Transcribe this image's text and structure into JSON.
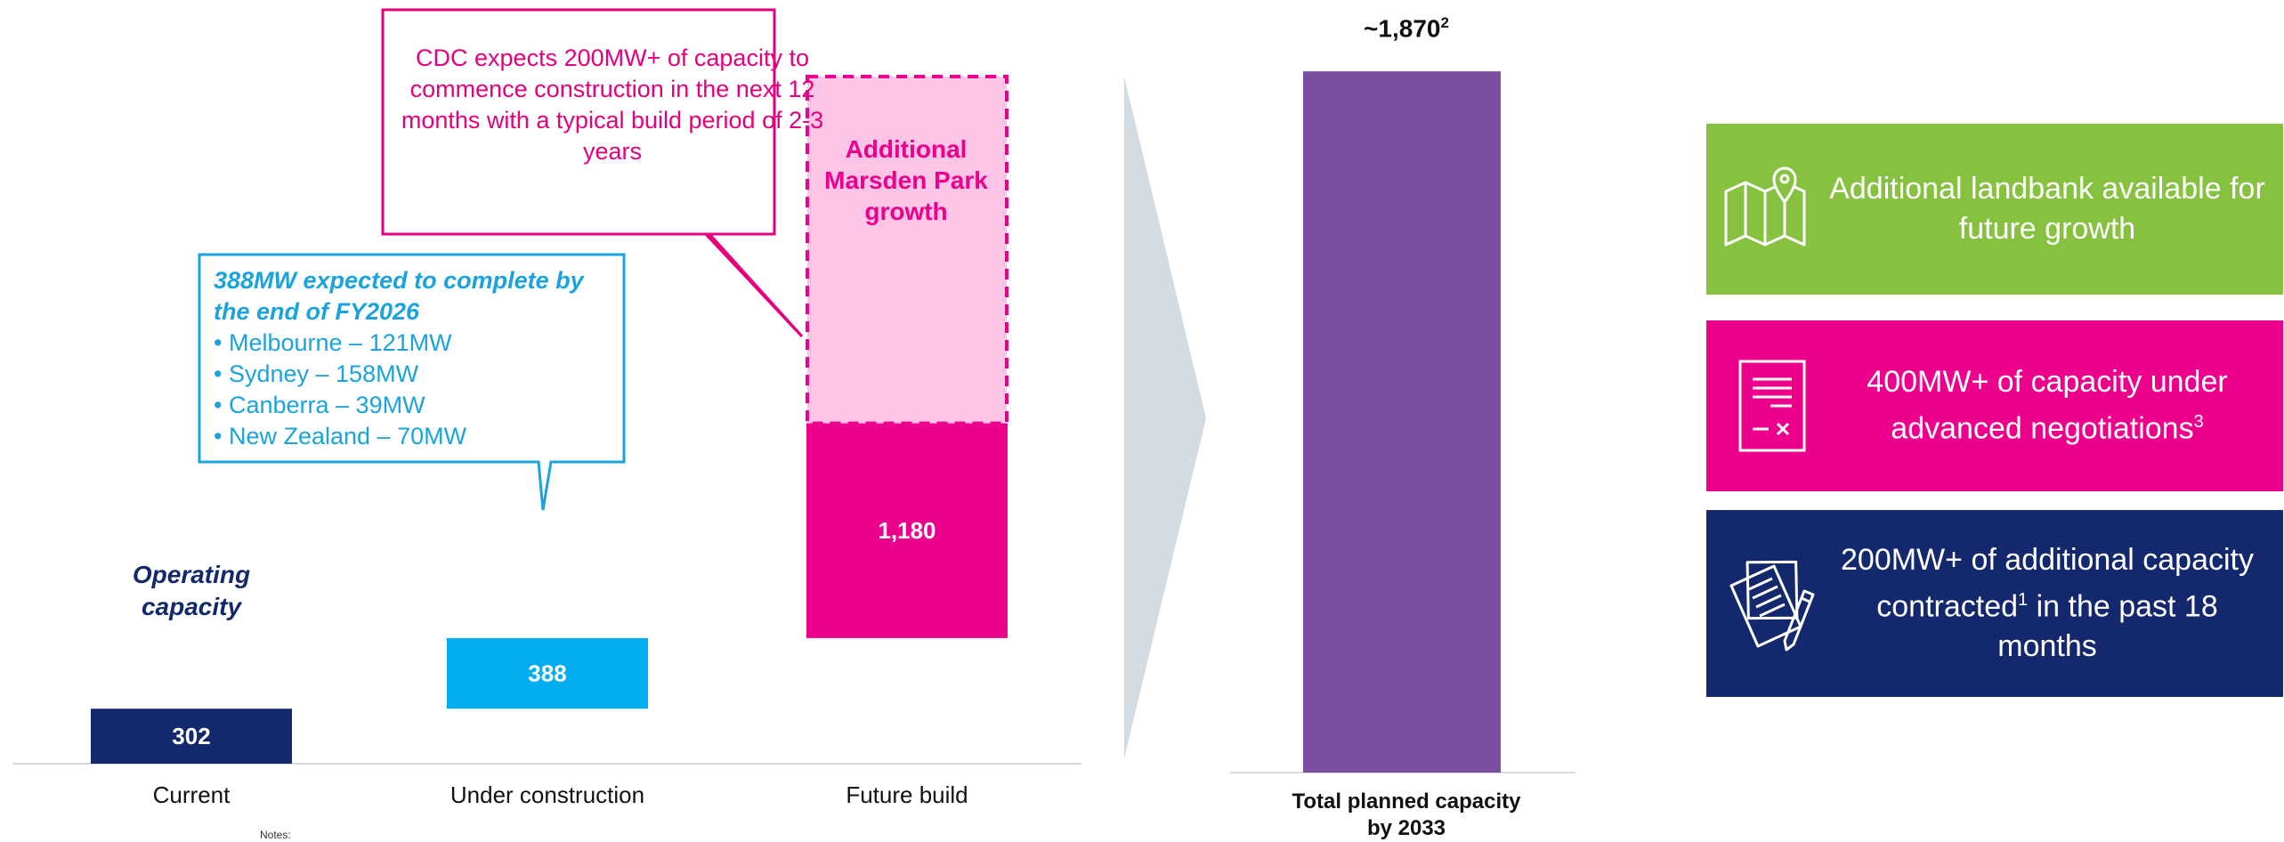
{
  "chart_data": [
    {
      "type": "bar",
      "categories": [
        "Current",
        "Under construction",
        "Future build"
      ],
      "series": [
        {
          "values": [
            302,
            388,
            1180
          ]
        }
      ],
      "value_labels": [
        "302",
        "388",
        "1,180"
      ],
      "extra_segment": {
        "category": "Future build",
        "label": "Additional Marsden Park growth",
        "style": "dashed-light-pink"
      },
      "annotations": {
        "operating": "Operating capacity",
        "callout_pink": "CDC expects 200MW+ of capacity to commence construction in the next 12 months with a typical build period of 2-3 years",
        "callout_blue_heading": "388MW expected to complete by the end of FY2026",
        "callout_blue_items": [
          "Melbourne – 121MW",
          "Sydney – 158MW",
          "Canberra – 39MW",
          "New Zealand – 70MW"
        ]
      },
      "colors": {
        "current": "#14286e",
        "under_construction": "#00aeef",
        "future_build": "#ec008c",
        "marsden": "#fcc5e6"
      }
    },
    {
      "type": "bar",
      "categories": [
        "Total planned capacity by 2033"
      ],
      "values": [
        1870
      ],
      "value_label": "~1,870",
      "value_label_sup": "2",
      "color": "#7b4fa0"
    }
  ],
  "info_boxes": [
    {
      "icon": "map-pin-icon",
      "text": "Additional landbank available for future growth",
      "color": "#86c240"
    },
    {
      "icon": "document-icon",
      "text": "400MW+ of capacity under advanced negotiations",
      "sup": "3",
      "color": "#ec008c"
    },
    {
      "icon": "contract-pen-icon",
      "text_before": "200MW+ of additional capacity contracted",
      "sup": "1",
      "text_after": " in the past 18 months",
      "color": "#14286e"
    }
  ],
  "notes_label": "Notes:"
}
